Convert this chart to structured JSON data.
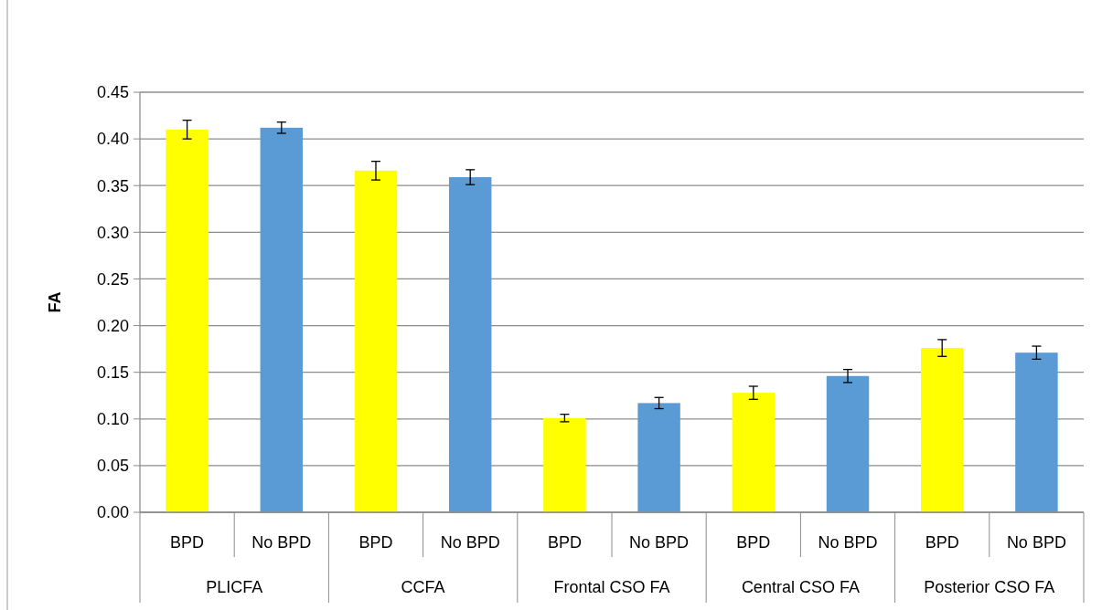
{
  "chart_data": {
    "type": "bar",
    "ylabel": "FA",
    "categories": [
      "PLICFA",
      "CCFA",
      "Frontal CSO FA",
      "Central CSO FA",
      "Posterior CSO FA"
    ],
    "series": [
      {
        "name": "BPD",
        "color": "#ffff00",
        "values": [
          0.41,
          0.366,
          0.101,
          0.128,
          0.176
        ],
        "errors": [
          0.01,
          0.01,
          0.004,
          0.007,
          0.009
        ]
      },
      {
        "name": "No BPD",
        "color": "#5b9bd5",
        "values": [
          0.412,
          0.359,
          0.117,
          0.146,
          0.171
        ],
        "errors": [
          0.006,
          0.008,
          0.006,
          0.007,
          0.007
        ]
      }
    ],
    "ylim": [
      0,
      0.45
    ],
    "yticks": [
      {
        "value": 0,
        "label": "0.00"
      },
      {
        "value": 0.05,
        "label": "0.05"
      },
      {
        "value": 0.1,
        "label": "0.10"
      },
      {
        "value": 0.15,
        "label": "0.15"
      },
      {
        "value": 0.2,
        "label": "0.20"
      },
      {
        "value": 0.25,
        "label": "0.25"
      },
      {
        "value": 0.3,
        "label": "0.30"
      },
      {
        "value": 0.35,
        "label": "0.35"
      },
      {
        "value": 0.4,
        "label": "0.40"
      },
      {
        "value": 0.45,
        "label": "0.45"
      }
    ],
    "grid": "y"
  }
}
